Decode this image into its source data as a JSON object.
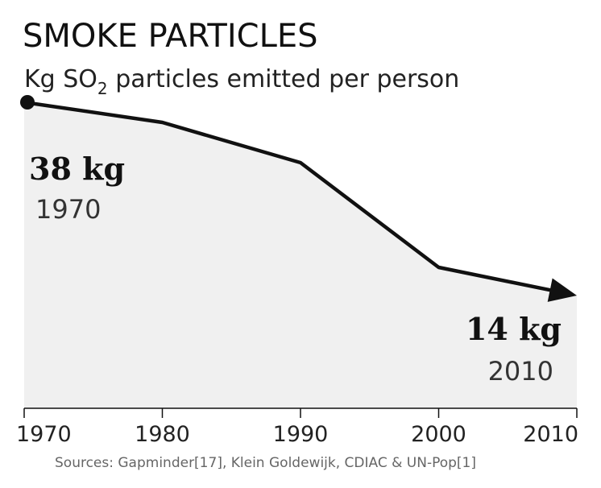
{
  "title": "SMOKE PARTICLES",
  "subtitle": {
    "prefix": "Kg SO",
    "subscript": "2",
    "suffix": " particles emitted per person"
  },
  "source": "Sources: Gapminder[17], Klein Goldewijk, CDIAC & UN-Pop[1]",
  "colors": {
    "line": "#111111",
    "area": "#f0f0f0",
    "axis": "#111111"
  },
  "chart_data": {
    "type": "area",
    "x": [
      1970,
      1980,
      1990,
      2000,
      2010
    ],
    "values": [
      38,
      35.5,
      30.5,
      17.5,
      14
    ],
    "xlim": [
      1970,
      2010
    ],
    "ylim": [
      0,
      40
    ],
    "x_ticks": [
      "1970",
      "1980",
      "1990",
      "2000",
      "2010"
    ],
    "annotations": [
      {
        "value": "38 kg",
        "year": "1970"
      },
      {
        "value": "14 kg",
        "year": "2010"
      }
    ],
    "grid": false,
    "end_marker": "arrow",
    "start_marker": "dot"
  }
}
